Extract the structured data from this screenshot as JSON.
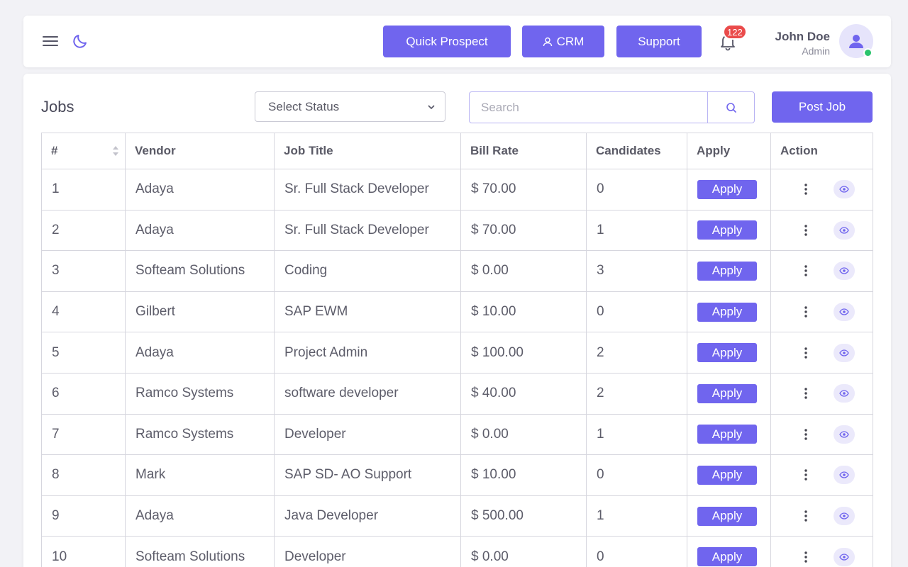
{
  "header": {
    "quick_prospect_label": "Quick Prospect",
    "crm_label": "CRM",
    "support_label": "Support",
    "notification_count": "122",
    "user": {
      "name": "John Doe",
      "role": "Admin"
    }
  },
  "jobs": {
    "title": "Jobs",
    "status_select": {
      "selected": "Select Status"
    },
    "search": {
      "placeholder": "Search",
      "value": ""
    },
    "post_job_label": "Post Job",
    "columns": [
      "#",
      "Vendor",
      "Job Title",
      "Bill Rate",
      "Candidates",
      "Apply",
      "Action"
    ],
    "apply_label": "Apply",
    "rows": [
      {
        "num": "1",
        "vendor": "Adaya",
        "title": "Sr. Full Stack Developer",
        "rate": "$ 70.00",
        "candidates": "0"
      },
      {
        "num": "2",
        "vendor": "Adaya",
        "title": "Sr. Full Stack Developer",
        "rate": "$ 70.00",
        "candidates": "1"
      },
      {
        "num": "3",
        "vendor": "Softeam Solutions",
        "title": "Coding",
        "rate": "$ 0.00",
        "candidates": "3"
      },
      {
        "num": "4",
        "vendor": "Gilbert",
        "title": "SAP EWM",
        "rate": "$ 10.00",
        "candidates": "0"
      },
      {
        "num": "5",
        "vendor": "Adaya",
        "title": "Project Admin",
        "rate": "$ 100.00",
        "candidates": "2"
      },
      {
        "num": "6",
        "vendor": "Ramco Systems",
        "title": "software developer",
        "rate": "$ 40.00",
        "candidates": "2"
      },
      {
        "num": "7",
        "vendor": "Ramco Systems",
        "title": "Developer",
        "rate": "$ 0.00",
        "candidates": "1"
      },
      {
        "num": "8",
        "vendor": "Mark",
        "title": "SAP SD- AO Support",
        "rate": "$ 10.00",
        "candidates": "0"
      },
      {
        "num": "9",
        "vendor": "Adaya",
        "title": "Java Developer",
        "rate": "$ 500.00",
        "candidates": "1"
      },
      {
        "num": "10",
        "vendor": "Softeam Solutions",
        "title": "Developer",
        "rate": "$ 0.00",
        "candidates": "0"
      }
    ]
  },
  "colors": {
    "accent": "#7065ee",
    "badge": "#ea4b4b",
    "online": "#2bc46d"
  },
  "icons": [
    "menu-icon",
    "moon-icon",
    "user-icon",
    "bell-icon",
    "avatar-icon",
    "chevron-down-icon",
    "search-icon",
    "sort-icon",
    "kebab-icon",
    "eye-icon"
  ]
}
